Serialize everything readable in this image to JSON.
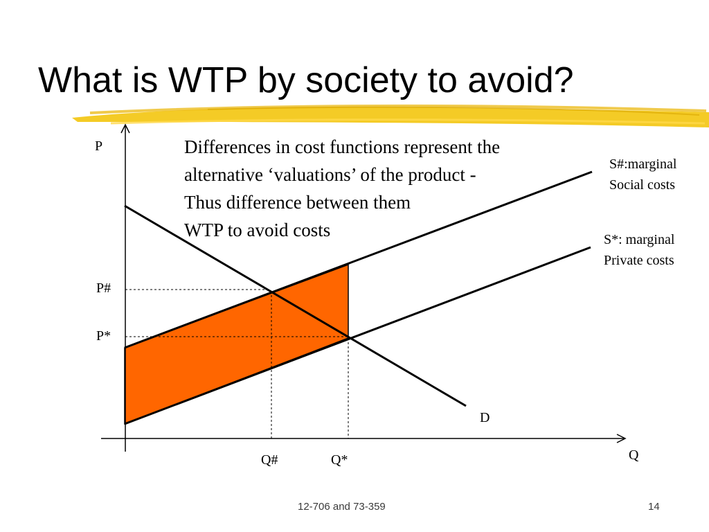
{
  "slide": {
    "title": "What is WTP by society to avoid?",
    "footer_center": "12-706 and 73-359",
    "page_number": "14"
  },
  "note": {
    "lines": [
      "Differences in cost functions represent the",
      "alternative ‘valuations’ of the product -",
      "Thus difference between them",
      "WTP to avoid costs"
    ]
  },
  "curves": {
    "social": {
      "line1": "S#:marginal",
      "line2": "Social costs"
    },
    "private": {
      "line1": "S*: marginal",
      "line2": "Private costs"
    },
    "demand": "D"
  },
  "axes": {
    "y_label": "P",
    "x_label": "Q",
    "p_hash": "P#",
    "p_star": "P*",
    "q_hash": "Q#",
    "q_star": "Q*"
  },
  "colors": {
    "area_fill": "#ff6600",
    "title_underline": "#f2c200",
    "line": "#000000"
  }
}
